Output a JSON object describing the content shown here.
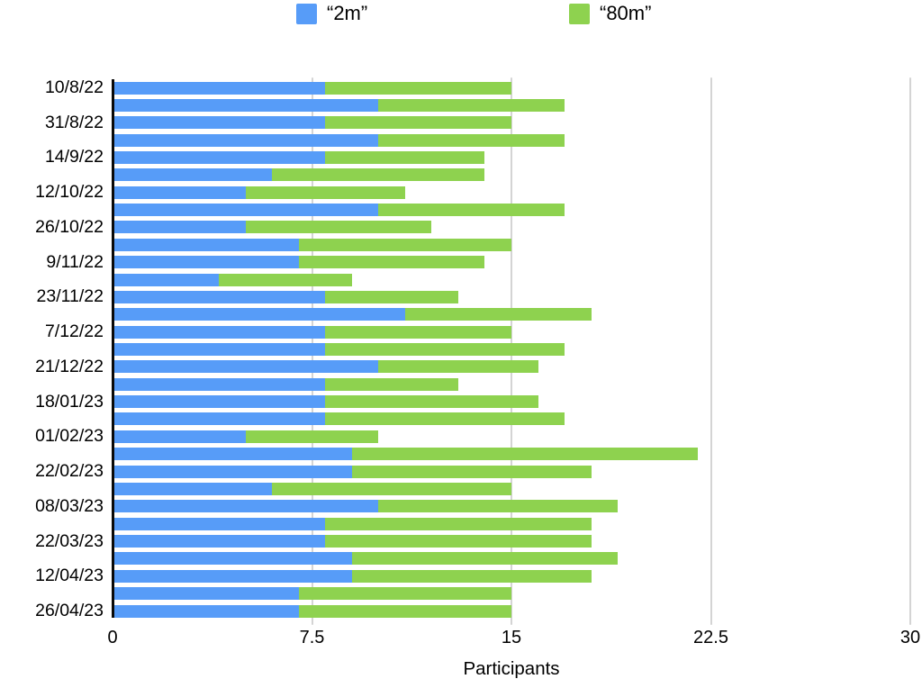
{
  "legend": {
    "items": [
      {
        "label": "“2m”",
        "color": "#579CF8"
      },
      {
        "label": "“80m”",
        "color": "#8ED24F"
      }
    ]
  },
  "axes": {
    "xlabel": "Participants",
    "x_ticks": [
      "0",
      "7.5",
      "15",
      "22.5",
      "30"
    ]
  },
  "colors": {
    "gridline": "#d4d4d4",
    "y_axis_line": "#0a0a0a",
    "series_2m": "#579CF8",
    "series_80m": "#8ED24F"
  },
  "chart_data": {
    "type": "bar",
    "orientation": "horizontal",
    "stacked": true,
    "xlabel": "Participants",
    "xlim": [
      0,
      30
    ],
    "x_tick_values": [
      0,
      7.5,
      15,
      22.5,
      30
    ],
    "grid": "vertical",
    "legend_position": "top",
    "categories": [
      "10/8/22",
      "",
      "31/8/22",
      "",
      "14/9/22",
      "",
      "12/10/22",
      "",
      "26/10/22",
      "",
      "9/11/22",
      "",
      "23/11/22",
      "",
      "7/12/22",
      "",
      "21/12/22",
      "",
      "18/01/23",
      "",
      "01/02/23",
      "",
      "22/02/23",
      "",
      "08/03/23",
      "",
      "22/03/23",
      "",
      "12/04/23",
      "",
      "26/04/23"
    ],
    "series": [
      {
        "name": "“2m”",
        "color": "#579CF8",
        "values": [
          8,
          10,
          8,
          10,
          8,
          6,
          5,
          10,
          5,
          7,
          7,
          4,
          8,
          11,
          8,
          8,
          10,
          8,
          8,
          8,
          5,
          9,
          9,
          6,
          10,
          8,
          8,
          9,
          9,
          7,
          7
        ]
      },
      {
        "name": "“80m”",
        "color": "#8ED24F",
        "values": [
          7,
          7,
          7,
          7,
          6,
          8,
          6,
          7,
          7,
          8,
          7,
          5,
          5,
          7,
          7,
          9,
          6,
          5,
          8,
          9,
          5,
          13,
          9,
          9,
          9,
          10,
          10,
          10,
          9,
          8,
          8
        ]
      }
    ]
  }
}
